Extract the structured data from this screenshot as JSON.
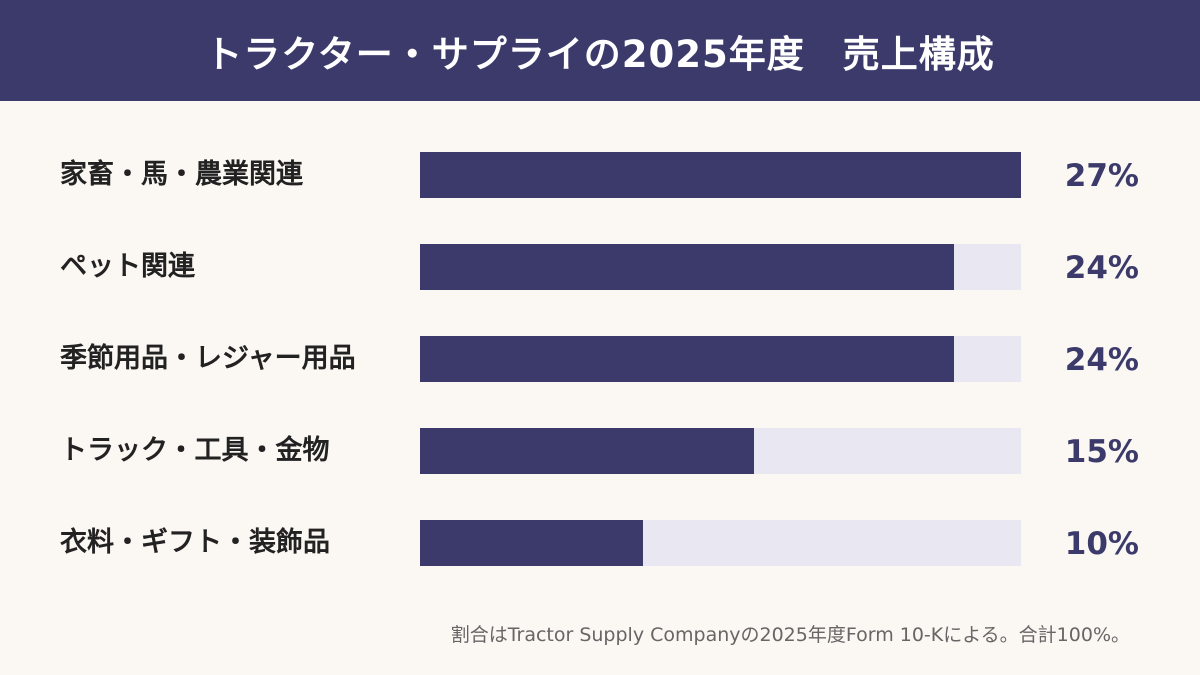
{
  "header": {
    "title": "トラクター・サプライの2025年度　売上構成"
  },
  "colors": {
    "accent": "#3b3a6b",
    "track": "#e9e8f2",
    "background": "#fbf7f2"
  },
  "chart_data": {
    "type": "bar",
    "orientation": "horizontal",
    "title": "トラクター・サプライの2025年度　売上構成",
    "categories": [
      "家畜・馬・農業関連",
      "ペット関連",
      "季節用品・レジャー用品",
      "トラック・工具・金物",
      "衣料・ギフト・装飾品"
    ],
    "values": [
      27,
      24,
      24,
      15,
      10
    ],
    "value_labels": [
      "27%",
      "24%",
      "24%",
      "15%",
      "10%"
    ],
    "unit": "%",
    "xlim": [
      0,
      27
    ],
    "grid": false,
    "legend": "none"
  },
  "footnote": "割合はTractor Supply Companyの2025年度Form 10-Kによる。合計100%。"
}
